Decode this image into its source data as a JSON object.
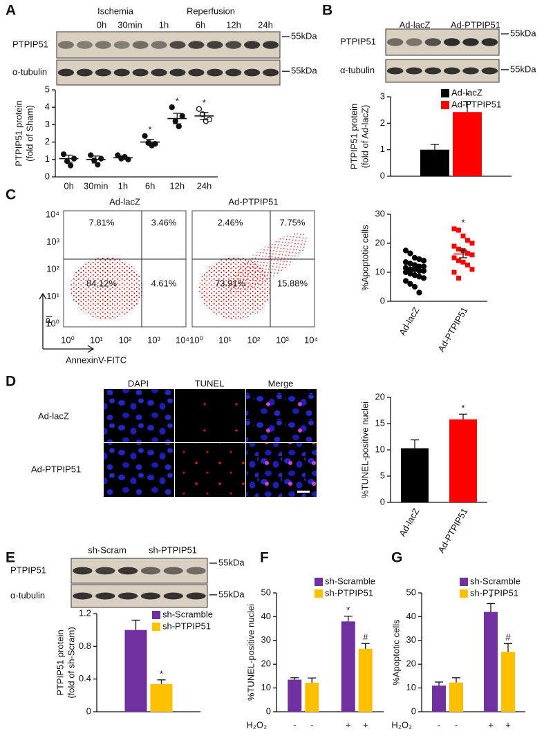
{
  "panel_letters": [
    "A",
    "B",
    "C",
    "D",
    "E",
    "F",
    "G"
  ],
  "blots": [
    {
      "top_labels": [
        "Ischemia",
        "Reperfusion"
      ],
      "lane_labels": [
        "0h",
        "30min",
        "1h",
        "6h",
        "12h",
        "24h"
      ],
      "rows": [
        "PTPIP51",
        "α-tubulin"
      ],
      "marker": "55kDa"
    },
    {
      "top_labels": [
        "Ad-lacZ",
        "Ad-PTPIP51"
      ],
      "rows": [
        "PTPIP51",
        "α-tubulin"
      ],
      "marker": "55kDa"
    },
    {
      "top_labels": [
        "sh-Scram",
        "sh-PTPIP51"
      ],
      "rows": [
        "PTPIP51",
        "α-tubulin"
      ],
      "marker": "55kDa"
    }
  ],
  "flow": {
    "titles": [
      "Ad-lacZ",
      "Ad-PTPIP51"
    ],
    "quadrants": [
      [
        "7.81%",
        "3.46%",
        "84.12%",
        "4.61%"
      ],
      [
        "2.46%",
        "7.75%",
        "73.91%",
        "15.88%"
      ]
    ],
    "ticks": [
      "10⁰",
      "10¹",
      "10²",
      "10³",
      "10⁴"
    ],
    "xlabel": "AnnexinV-FITC",
    "ylabel": "PI"
  },
  "microscopy": {
    "columns": [
      "DAPI",
      "TUNEL",
      "Merge"
    ],
    "rows": [
      "Ad-lacZ",
      "Ad-PTPIP51"
    ]
  },
  "chart_data": [
    {
      "type": "dot",
      "categories": [
        "0h",
        "30min",
        "1h",
        "6h",
        "12h",
        "24h"
      ],
      "values": [
        1.05,
        1.0,
        1.1,
        2.0,
        3.35,
        3.5
      ],
      "errors": [
        0.2,
        0.2,
        0.1,
        0.15,
        0.3,
        0.2
      ],
      "points": [
        [
          1.3,
          0.9,
          0.65,
          1.05
        ],
        [
          1.25,
          0.95,
          0.7,
          1.05
        ],
        [
          1.25,
          1.05,
          1.15,
          1.0
        ],
        [
          2.35,
          1.95,
          1.8,
          1.9
        ],
        [
          4.0,
          3.2,
          2.9,
          3.5
        ],
        [
          3.9,
          3.6,
          3.2,
          3.3
        ]
      ],
      "significance": [
        null,
        null,
        null,
        "*",
        "*",
        "*"
      ],
      "color": "#111111",
      "ylabel": [
        "PTPIP51 protein",
        "(fold of Sham)"
      ],
      "ylim": [
        0,
        5
      ],
      "yticks": [
        0,
        1,
        2,
        3,
        4,
        5
      ]
    },
    {
      "type": "bar",
      "categories": [
        null
      ],
      "series": [
        {
          "name": "Ad-lacZ",
          "color": "#000000",
          "values": [
            1.0
          ],
          "errors": [
            0.2
          ],
          "significance": [
            null
          ]
        },
        {
          "name": "Ad-PTPIP51",
          "color": "#ff0000",
          "values": [
            2.42
          ],
          "errors": [
            0.4
          ],
          "significance": [
            "*"
          ]
        }
      ],
      "ylabel": [
        "PTPIP51 protein",
        "(fold of Ad-lacZ)"
      ],
      "ylim": [
        0,
        3
      ],
      "yticks": [
        0,
        1,
        2,
        3
      ],
      "legend": "top-right"
    },
    {
      "type": "dot",
      "categories": [
        "Ad-lacZ",
        "Ad-PTPIP51"
      ],
      "values": [
        11,
        16.3
      ],
      "errors": [
        0.7,
        1.3
      ],
      "points": [
        [
          17.5,
          16.5,
          15,
          14.5,
          14,
          13.5,
          13,
          12.5,
          12,
          12,
          11.5,
          11,
          11,
          10.5,
          10.5,
          10,
          9.5,
          9,
          8.5,
          8,
          7,
          6,
          5,
          3
        ],
        [
          25,
          24.5,
          22.5,
          21,
          20,
          19,
          18,
          17.5,
          16.5,
          16,
          15,
          14,
          13.5,
          12.5,
          11,
          10,
          8
        ]
      ],
      "colors": [
        "#000000",
        "#ff0000"
      ],
      "significance": [
        null,
        "*"
      ],
      "ylabel": "%Apoptotic cells",
      "ylim": [
        0,
        30
      ],
      "yticks": [
        0,
        10,
        20,
        30
      ]
    },
    {
      "type": "bar",
      "categories": [
        "Ad-lacZ",
        "Ad-PTPIP51"
      ],
      "values": [
        10.3,
        15.8
      ],
      "errors": [
        1.6,
        1.0
      ],
      "colors": [
        "#000000",
        "#ff0000"
      ],
      "significance": [
        null,
        "*"
      ],
      "ylabel": "%TUNEL-positive nuclei",
      "ylim": [
        0,
        20
      ],
      "yticks": [
        0,
        5,
        10,
        15,
        20
      ]
    },
    {
      "type": "bar",
      "categories": [
        null
      ],
      "series": [
        {
          "name": "sh-Scramble",
          "color": "#7030a0",
          "values": [
            1.0
          ],
          "errors": [
            0.12
          ],
          "significance": [
            null
          ]
        },
        {
          "name": "sh-PTPIP51",
          "color": "#ffc000",
          "values": [
            0.34
          ],
          "errors": [
            0.05
          ],
          "significance": [
            "*"
          ]
        }
      ],
      "ylabel": [
        "PTPIP51 protein",
        "(fold of sh-Scram)"
      ],
      "ylim": [
        0,
        1.2
      ],
      "yticks": [
        0,
        0.4,
        0.8,
        1.2
      ],
      "legend": "top-right"
    },
    {
      "type": "bar",
      "categories": [
        "-",
        "+"
      ],
      "xlabel": "H₂O₂",
      "series": [
        {
          "name": "sh-Scramble",
          "color": "#7030a0",
          "values": [
            13.5,
            38
          ],
          "errors": [
            0.8,
            2.2
          ],
          "significance": [
            null,
            "*"
          ]
        },
        {
          "name": "sh-PTPIP51",
          "color": "#ffc000",
          "values": [
            12.2,
            26.5
          ],
          "errors": [
            2.0,
            2.2
          ],
          "significance": [
            null,
            "#"
          ]
        }
      ],
      "ylabel": "%TUNEL-positive nuclei",
      "ylim": [
        0,
        50
      ],
      "yticks": [
        0,
        10,
        20,
        30,
        40,
        50
      ],
      "legend": "top"
    },
    {
      "type": "bar",
      "categories": [
        "-",
        "+"
      ],
      "xlabel": "H₂O₂",
      "series": [
        {
          "name": "sh-Scramble",
          "color": "#7030a0",
          "values": [
            11,
            42
          ],
          "errors": [
            1.5,
            3.5
          ],
          "significance": [
            null,
            "*"
          ]
        },
        {
          "name": "sh-PTPIP51",
          "color": "#ffc000",
          "values": [
            12.3,
            25.2
          ],
          "errors": [
            2.0,
            3.5
          ],
          "significance": [
            null,
            "#"
          ]
        }
      ],
      "ylabel": "%Apoptotic cells",
      "ylim": [
        0,
        50
      ],
      "yticks": [
        0,
        10,
        20,
        30,
        40,
        50
      ],
      "legend": "top"
    }
  ]
}
